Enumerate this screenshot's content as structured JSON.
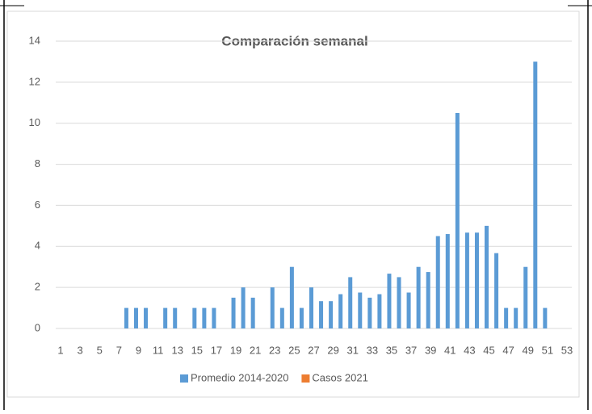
{
  "chart_data": {
    "type": "bar",
    "title": "Comparación semanal",
    "categories": [
      "1",
      null,
      "3",
      null,
      "5",
      null,
      "7",
      null,
      "9",
      null,
      "11",
      null,
      "13",
      null,
      "15",
      null,
      "17",
      null,
      "19",
      null,
      "21",
      null,
      "23",
      null,
      "25",
      null,
      "27",
      null,
      "29",
      null,
      "31",
      null,
      "33",
      null,
      "35",
      null,
      "37",
      null,
      "39",
      null,
      "41",
      null,
      "43",
      null,
      "45",
      null,
      "47",
      null,
      "49",
      null,
      "51",
      null,
      "53"
    ],
    "series": [
      {
        "name": "Promedio 2014-2020",
        "color": "#5b9bd5",
        "values": [
          0,
          0,
          0,
          0,
          0,
          0,
          0,
          1,
          1,
          1,
          0,
          1,
          1,
          0,
          1,
          1,
          1,
          0,
          1.5,
          2,
          1.5,
          0,
          2,
          1,
          3,
          1,
          2,
          1.33,
          1.33,
          1.67,
          2.5,
          1.75,
          1.5,
          1.67,
          2.67,
          2.5,
          1.75,
          3,
          2.75,
          4.5,
          4.6,
          10.5,
          4.67,
          4.67,
          5,
          3.67,
          1,
          1,
          3,
          13,
          1,
          0,
          0
        ]
      },
      {
        "name": "Casos 2021",
        "color": "#ed7d31",
        "values": [
          null,
          null,
          null,
          null,
          null,
          null,
          null,
          null,
          null,
          null,
          null,
          null,
          null,
          null,
          null,
          null,
          null,
          null,
          null,
          null,
          null,
          null,
          null,
          null,
          null,
          null,
          null,
          null,
          null,
          null,
          null,
          null,
          null,
          null,
          null,
          null,
          null,
          null,
          null,
          null,
          null,
          null,
          null,
          null,
          null,
          null,
          null,
          null,
          null,
          null,
          null,
          null,
          null
        ]
      }
    ],
    "ylim": [
      0,
      14
    ],
    "yticks": [
      0,
      2,
      4,
      6,
      8,
      10,
      12,
      14
    ],
    "grid": true,
    "legend": "bottom"
  }
}
